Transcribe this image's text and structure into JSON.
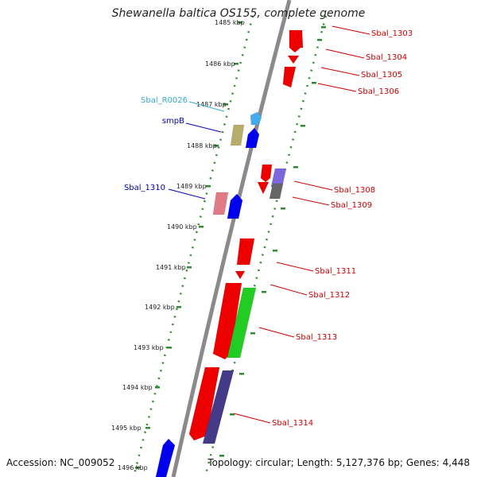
{
  "title": "Shewanella baltica OS155, complete genome",
  "footer": {
    "accession": "Accession: NC_009052",
    "summary": "Topology: circular; Length: 5,127,376 bp; Genes: 4,448"
  },
  "colors": {
    "backbone": "#8a8a8a",
    "ruler": "#2e8b2e",
    "forward_label": "#cc0000",
    "reverse_label": "#0000aa",
    "rna_label": "#33aacc"
  },
  "ticks": [
    "1485 kbp",
    "1486 kbp",
    "1487 kbp",
    "1488 kbp",
    "1489 kbp",
    "1490 kbp",
    "1491 kbp",
    "1492 kbp",
    "1493 kbp",
    "1494 kbp",
    "1495 kbp",
    "1496 kbp"
  ],
  "features": [
    {
      "name": "fwd-gene-1303",
      "color": "#ee0000"
    },
    {
      "name": "fwd-gene-1303b",
      "color": "#ee0000"
    },
    {
      "name": "fwd-gene-1304",
      "color": "#ee0000"
    },
    {
      "name": "fwd-gene-1305",
      "color": "#ee0000"
    },
    {
      "name": "fwd-gene-1308",
      "color": "#ee0000"
    },
    {
      "name": "fwd-gene-1308b",
      "color": "#ee0000"
    },
    {
      "name": "fwd-gene-1311",
      "color": "#ee0000"
    },
    {
      "name": "fwd-gene-1312",
      "color": "#ee0000"
    },
    {
      "name": "fwd-gene-1313",
      "color": "#ee0000"
    },
    {
      "name": "fwd-gene-1314",
      "color": "#ee0000"
    },
    {
      "name": "rna-gene-r0026",
      "color": "#44aaee"
    },
    {
      "name": "olive-gene-smpb",
      "color": "#b5ad6a"
    },
    {
      "name": "blue-gene-smpb",
      "color": "#0000ee"
    },
    {
      "name": "purple-gene-1308",
      "color": "#7b68dd"
    },
    {
      "name": "gray-gene-1309",
      "color": "#666666"
    },
    {
      "name": "pink-gene-1310",
      "color": "#e07a85"
    },
    {
      "name": "blue-gene-1310",
      "color": "#0000ee"
    },
    {
      "name": "green-gene-1313",
      "color": "#22cc22"
    },
    {
      "name": "navy-gene-1314",
      "color": "#443a88"
    },
    {
      "name": "blue-gene-bottom",
      "color": "#0000ee"
    }
  ],
  "labels": [
    {
      "text": "Sbal_1303",
      "color": "#cc0000"
    },
    {
      "text": "Sbal_1304",
      "color": "#cc0000"
    },
    {
      "text": "Sbal_1305",
      "color": "#cc0000"
    },
    {
      "text": "Sbal_1306",
      "color": "#cc0000"
    },
    {
      "text": "Sbal_1308",
      "color": "#cc0000"
    },
    {
      "text": "Sbal_1309",
      "color": "#cc0000"
    },
    {
      "text": "Sbal_1311",
      "color": "#cc0000"
    },
    {
      "text": "Sbal_1312",
      "color": "#cc0000"
    },
    {
      "text": "Sbal_1313",
      "color": "#cc0000"
    },
    {
      "text": "Sbal_1314",
      "color": "#cc0000"
    },
    {
      "text": "Sbal_R0026",
      "color": "#33aacc"
    },
    {
      "text": "smpB",
      "color": "#0000aa"
    },
    {
      "text": "Sbal_1310",
      "color": "#0000aa"
    }
  ]
}
